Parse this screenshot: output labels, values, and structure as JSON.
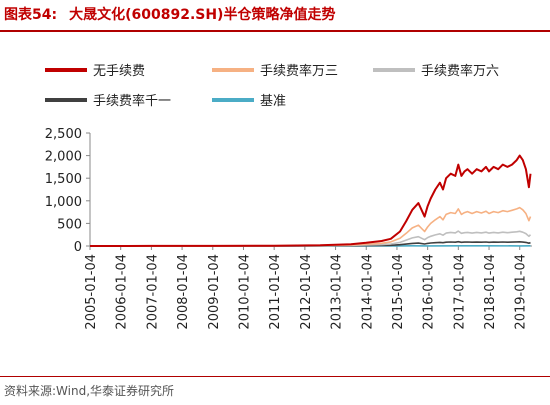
{
  "header": {
    "figure_label": "图表54:",
    "title": "大晟文化(600892.SH)半仓策略净值走势"
  },
  "footer": {
    "source": "资料来源:Wind,华泰证券研究所"
  },
  "chart_data": {
    "type": "line",
    "title": "大晟文化(600892.SH)半仓策略净值走势",
    "xlabel": "",
    "ylabel": "",
    "x_ticks": [
      "2005-01-04",
      "2006-01-04",
      "2007-01-04",
      "2008-01-04",
      "2009-01-04",
      "2010-01-04",
      "2011-01-04",
      "2012-01-04",
      "2013-01-04",
      "2014-01-04",
      "2015-01-04",
      "2016-01-04",
      "2017-01-04",
      "2018-01-04",
      "2019-01-04"
    ],
    "y_ticks": [
      0,
      500,
      1000,
      1500,
      2000,
      2500
    ],
    "y_tick_labels": [
      "0",
      "500",
      "1,000",
      "1,500",
      "2,000",
      "2,500"
    ],
    "ylim": [
      0,
      2500
    ],
    "xlim": [
      2005.0,
      2019.4
    ],
    "legend_position": "top",
    "grid": false,
    "series": [
      {
        "name": "无手续费",
        "color": "#c00000",
        "x": [
          2005.0,
          2007.0,
          2009.0,
          2011.0,
          2012.5,
          2013.5,
          2014.0,
          2014.5,
          2014.8,
          2015.1,
          2015.3,
          2015.5,
          2015.7,
          2015.9,
          2016.0,
          2016.1,
          2016.25,
          2016.4,
          2016.5,
          2016.6,
          2016.75,
          2016.9,
          2017.0,
          2017.1,
          2017.2,
          2017.3,
          2017.45,
          2017.6,
          2017.75,
          2017.9,
          2018.0,
          2018.15,
          2018.3,
          2018.45,
          2018.6,
          2018.75,
          2018.9,
          2019.0,
          2019.1,
          2019.2,
          2019.3,
          2019.35
        ],
        "values": [
          1,
          2,
          3,
          6,
          15,
          40,
          70,
          110,
          160,
          320,
          550,
          800,
          950,
          650,
          880,
          1050,
          1250,
          1400,
          1250,
          1500,
          1600,
          1550,
          1800,
          1550,
          1650,
          1700,
          1600,
          1700,
          1650,
          1750,
          1650,
          1750,
          1700,
          1800,
          1750,
          1800,
          1900,
          2000,
          1900,
          1700,
          1300,
          1600
        ]
      },
      {
        "name": "手续费率万三",
        "color": "#f6b183",
        "x": [
          2005.0,
          2007.0,
          2009.0,
          2011.0,
          2012.5,
          2013.5,
          2014.0,
          2014.5,
          2014.8,
          2015.1,
          2015.3,
          2015.5,
          2015.7,
          2015.9,
          2016.0,
          2016.1,
          2016.25,
          2016.4,
          2016.5,
          2016.6,
          2016.75,
          2016.9,
          2017.0,
          2017.1,
          2017.2,
          2017.3,
          2017.45,
          2017.6,
          2017.75,
          2017.9,
          2018.0,
          2018.15,
          2018.3,
          2018.45,
          2018.6,
          2018.75,
          2018.9,
          2019.0,
          2019.1,
          2019.2,
          2019.3,
          2019.35
        ],
        "values": [
          1,
          2,
          3,
          5,
          10,
          25,
          40,
          60,
          90,
          170,
          280,
          400,
          460,
          320,
          420,
          500,
          580,
          650,
          580,
          700,
          740,
          720,
          820,
          700,
          740,
          760,
          720,
          760,
          730,
          770,
          720,
          760,
          740,
          780,
          760,
          790,
          820,
          850,
          800,
          720,
          560,
          650
        ]
      },
      {
        "name": "手续费率万六",
        "color": "#bfbfbf",
        "x": [
          2005.0,
          2007.0,
          2009.0,
          2011.0,
          2012.5,
          2013.5,
          2014.0,
          2014.5,
          2014.8,
          2015.1,
          2015.3,
          2015.5,
          2015.7,
          2015.9,
          2016.0,
          2016.1,
          2016.25,
          2016.4,
          2016.5,
          2016.6,
          2016.75,
          2016.9,
          2017.0,
          2017.1,
          2017.2,
          2017.3,
          2017.45,
          2017.6,
          2017.75,
          2017.9,
          2018.0,
          2018.15,
          2018.3,
          2018.45,
          2018.6,
          2018.75,
          2018.9,
          2019.0,
          2019.1,
          2019.2,
          2019.3,
          2019.35
        ],
        "values": [
          1,
          2,
          3,
          4,
          7,
          15,
          22,
          32,
          45,
          80,
          130,
          180,
          205,
          140,
          185,
          215,
          245,
          270,
          240,
          285,
          300,
          290,
          330,
          280,
          295,
          300,
          285,
          300,
          290,
          305,
          285,
          300,
          290,
          305,
          295,
          305,
          315,
          325,
          305,
          275,
          215,
          250
        ]
      },
      {
        "name": "手续费率千一",
        "color": "#404040",
        "x": [
          2005.0,
          2007.0,
          2009.0,
          2011.0,
          2012.5,
          2013.5,
          2014.0,
          2014.5,
          2014.8,
          2015.1,
          2015.3,
          2015.5,
          2015.7,
          2015.9,
          2016.0,
          2016.1,
          2016.25,
          2016.4,
          2016.5,
          2016.6,
          2016.75,
          2016.9,
          2017.0,
          2017.1,
          2017.2,
          2017.3,
          2017.45,
          2017.6,
          2017.75,
          2017.9,
          2018.0,
          2018.15,
          2018.3,
          2018.45,
          2018.6,
          2018.75,
          2018.9,
          2019.0,
          2019.1,
          2019.2,
          2019.3,
          2019.35
        ],
        "values": [
          1,
          1,
          2,
          3,
          4,
          7,
          9,
          12,
          16,
          28,
          42,
          58,
          65,
          45,
          58,
          66,
          74,
          80,
          72,
          84,
          88,
          85,
          95,
          82,
          86,
          88,
          83,
          87,
          84,
          88,
          82,
          86,
          84,
          88,
          85,
          87,
          90,
          92,
          87,
          79,
          62,
          72
        ]
      },
      {
        "name": "基准",
        "color": "#4bacc6",
        "x": [
          2005.0,
          2007.0,
          2009.0,
          2011.0,
          2013.0,
          2015.0,
          2015.5,
          2016.0,
          2017.0,
          2018.0,
          2019.0,
          2019.35
        ],
        "values": [
          1,
          2,
          1.5,
          2,
          2,
          3,
          5,
          3,
          3.5,
          4,
          3,
          3.5
        ]
      }
    ]
  }
}
